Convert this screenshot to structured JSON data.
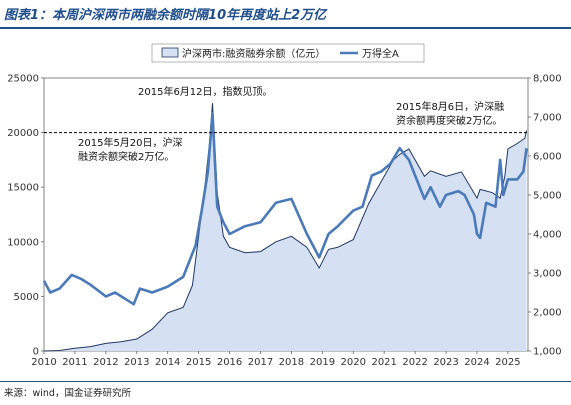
{
  "header": {
    "title": "图表1：本周沪深两市两融余额时隔10年再度站上2万亿"
  },
  "footer": {
    "source": "来源：wind，国金证券研究所"
  },
  "chart_data": {
    "type": "area",
    "title": "",
    "xlabel": "",
    "ylabel": "",
    "x_ticks": [
      "2010",
      "2011",
      "2012",
      "2013",
      "2014",
      "2015",
      "2016",
      "2017",
      "2018",
      "2019",
      "2020",
      "2021",
      "2022",
      "2023",
      "2024",
      "2025"
    ],
    "y_left": {
      "ticks": [
        "0",
        "5000",
        "10000",
        "15000",
        "20000",
        "25000"
      ],
      "min": 0,
      "max": 25000
    },
    "y_right": {
      "ticks": [
        "1,000",
        "2,000",
        "3,000",
        "4,000",
        "5,000",
        "6,000",
        "7,000",
        "8,000"
      ],
      "min": 1000,
      "max": 8000
    },
    "legend": {
      "placement": "top-right",
      "entries": [
        "沪深两市:融资融券余额（亿元）",
        "万得全A"
      ]
    },
    "reference_line": {
      "value": 20000,
      "axis": "left",
      "style": "dashed"
    },
    "colors": {
      "area_fill": "#d6e0f3",
      "area_line": "#1f3864",
      "index_line": "#4a7ab8",
      "axis": "#666666"
    },
    "series": [
      {
        "name": "沪深两市:融资融券余额（亿元）",
        "axis": "left",
        "x": [
          2010.0,
          2010.5,
          2011.0,
          2011.5,
          2012.0,
          2012.5,
          2013.0,
          2013.5,
          2014.0,
          2014.5,
          2014.8,
          2015.0,
          2015.2,
          2015.35,
          2015.45,
          2015.6,
          2015.8,
          2016.0,
          2016.5,
          2017.0,
          2017.5,
          2018.0,
          2018.5,
          2018.9,
          2019.2,
          2019.5,
          2020.0,
          2020.5,
          2020.8,
          2021.0,
          2021.3,
          2021.5,
          2021.8,
          2022.0,
          2022.3,
          2022.5,
          2023.0,
          2023.5,
          2024.0,
          2024.1,
          2024.5,
          2024.75,
          2024.9,
          2025.0,
          2025.3,
          2025.55,
          2025.6
        ],
        "values": [
          0,
          50,
          250,
          400,
          700,
          850,
          1100,
          2000,
          3500,
          4000,
          6000,
          10500,
          15000,
          19000,
          22700,
          14500,
          10500,
          9500,
          9000,
          9100,
          10000,
          10500,
          9500,
          7600,
          9300,
          9500,
          10200,
          13500,
          15000,
          16000,
          17500,
          18000,
          18500,
          17500,
          16000,
          16500,
          16000,
          16400,
          14000,
          14800,
          14500,
          14000,
          16000,
          18500,
          19000,
          19500,
          20200
        ]
      },
      {
        "name": "万得全A",
        "axis": "right",
        "x": [
          2010.0,
          2010.2,
          2010.5,
          2010.9,
          2011.2,
          2011.5,
          2012.0,
          2012.3,
          2012.9,
          2013.1,
          2013.5,
          2014.0,
          2014.5,
          2014.9,
          2015.1,
          2015.3,
          2015.45,
          2015.6,
          2015.8,
          2016.0,
          2016.5,
          2017.0,
          2017.5,
          2018.0,
          2018.5,
          2018.9,
          2019.2,
          2019.5,
          2020.0,
          2020.3,
          2020.6,
          2020.9,
          2021.2,
          2021.5,
          2021.8,
          2022.0,
          2022.3,
          2022.5,
          2022.8,
          2023.0,
          2023.4,
          2023.6,
          2023.9,
          2024.0,
          2024.1,
          2024.3,
          2024.6,
          2024.75,
          2024.85,
          2025.0,
          2025.3,
          2025.5,
          2025.6
        ],
        "values": [
          2800,
          2500,
          2600,
          2950,
          2850,
          2700,
          2400,
          2500,
          2200,
          2600,
          2500,
          2650,
          2900,
          3700,
          4600,
          5600,
          7100,
          4700,
          4300,
          4000,
          4200,
          4300,
          4800,
          4900,
          4000,
          3400,
          4000,
          4200,
          4600,
          4700,
          5500,
          5600,
          5800,
          6200,
          5900,
          5500,
          4900,
          5200,
          4700,
          5000,
          5100,
          5000,
          4500,
          4000,
          3900,
          4800,
          4700,
          5900,
          5000,
          5400,
          5400,
          5600,
          6200
        ]
      }
    ],
    "annotations": [
      {
        "text": "2015年6月12日，指数见顶。",
        "x": 2015.45,
        "y_right": 7100
      },
      {
        "text": "2015年5月20日，沪深融资余额突破2万亿。",
        "line1": "2015年5月20日，沪深",
        "line2": "融资余额突破2万亿。",
        "x": 2015.38,
        "y_left": 20000
      },
      {
        "text": "2015年8月6日，沪深融资余额再度突破2万亿。",
        "line1": "2015年8月6日，沪深融",
        "line2": "资余额再度突破2万亿。",
        "x": 2025.6,
        "y_left": 20000
      }
    ]
  }
}
